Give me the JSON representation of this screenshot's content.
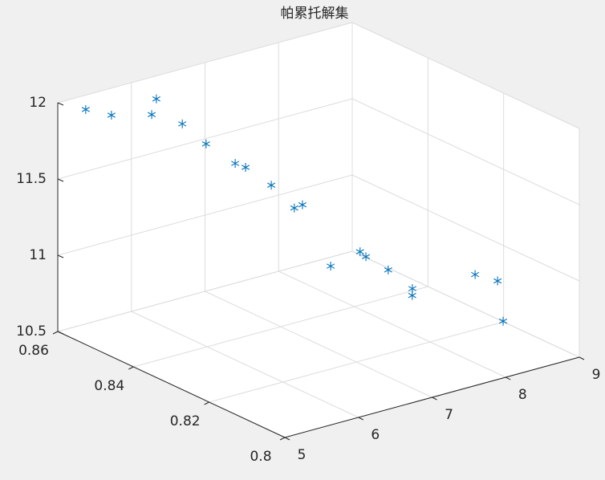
{
  "chart_data": {
    "type": "scatter3d",
    "title": "帕累托解集",
    "x": [
      5.2,
      5.4,
      6.0,
      5.7,
      6.1,
      6.3,
      6.5,
      6.6,
      6.8,
      7.0,
      7.1,
      7.0,
      7.6,
      7.7,
      7.9,
      8.1,
      8.0,
      8.7,
      9.0,
      8.7
    ],
    "y": [
      0.8565,
      0.8536,
      0.8534,
      0.8488,
      0.8485,
      0.8461,
      0.8423,
      0.8415,
      0.8386,
      0.8364,
      0.8362,
      0.8268,
      0.8307,
      0.8311,
      0.8291,
      0.8266,
      0.8247,
      0.8217,
      0.8216,
      0.8143
    ],
    "z": [
      11.97,
      11.94,
      11.97,
      11.96,
      11.85,
      11.72,
      11.61,
      11.58,
      11.47,
      11.32,
      11.33,
      11.05,
      11.02,
      10.97,
      10.88,
      10.76,
      10.75,
      10.83,
      10.75,
      10.61
    ],
    "color": "#0072bd",
    "xlim": [
      5,
      9
    ],
    "xticks": [
      5,
      6,
      7,
      8,
      9
    ],
    "ylim": [
      0.8,
      0.86
    ],
    "yticks": [
      0.8,
      0.82,
      0.84,
      0.86
    ],
    "zlim": [
      10.5,
      12
    ],
    "zticks": [
      10.5,
      11,
      11.5,
      12
    ],
    "grid": true
  }
}
